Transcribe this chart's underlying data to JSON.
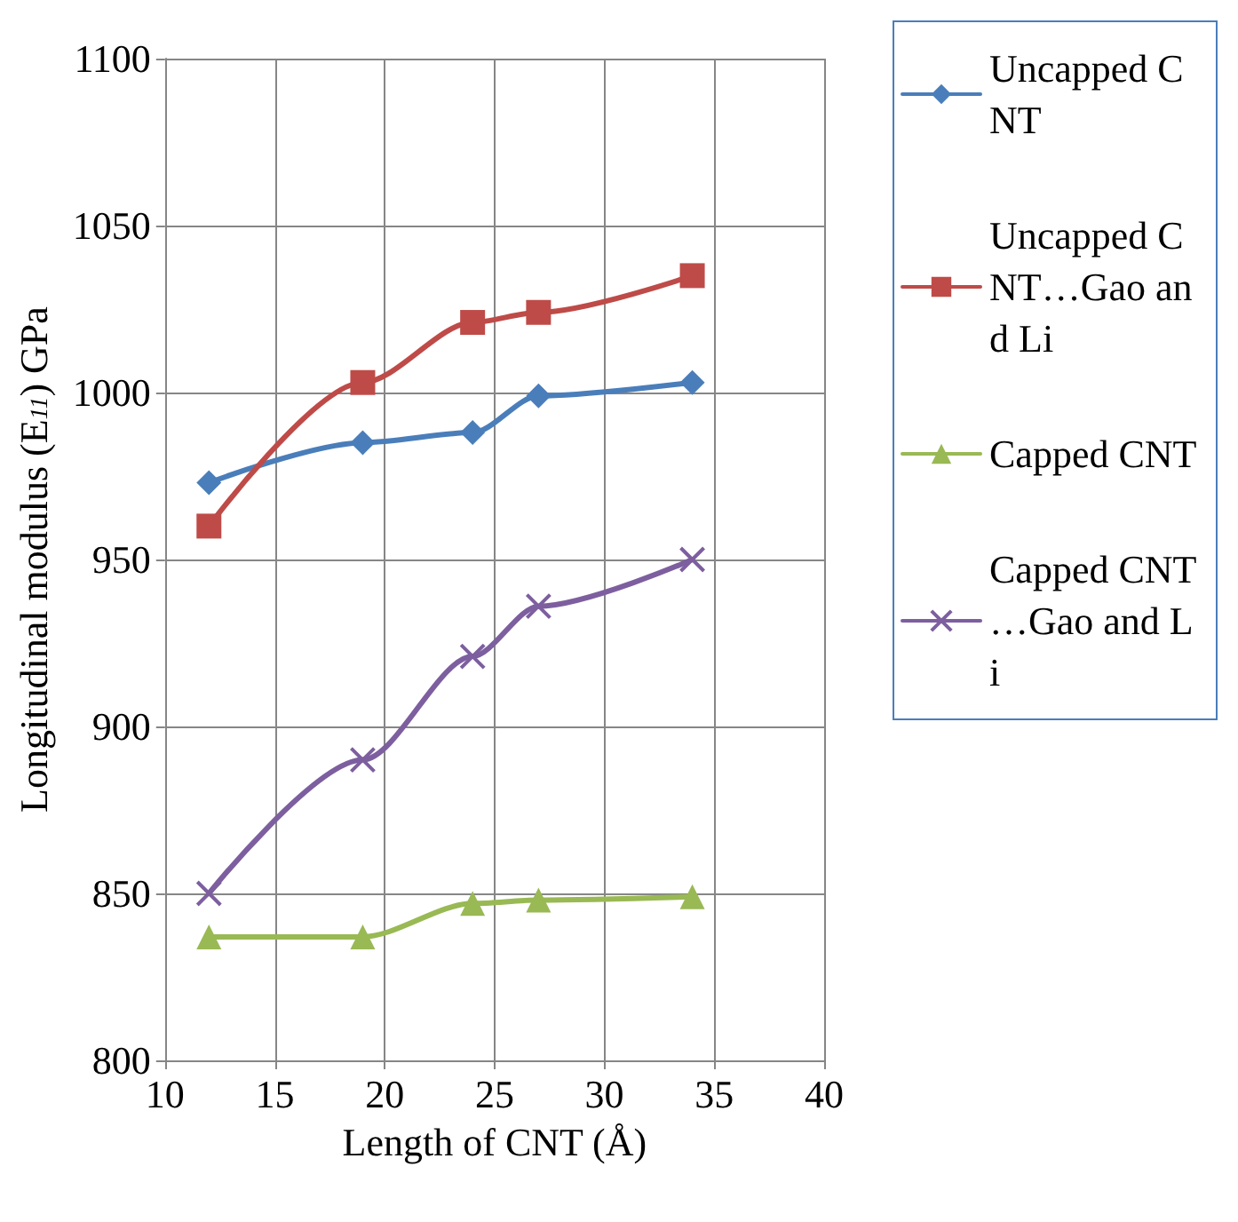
{
  "chart_data": {
    "type": "line",
    "xlabel": "Length of CNT (Å)",
    "ylabel": "Longitudinal modulus (E$_{11}$) GPa",
    "x": [
      12,
      19,
      24,
      27,
      34
    ],
    "series": [
      {
        "name": "Uncapped CNT",
        "color": "#4a7ebb",
        "marker": "diamond",
        "values": [
          973,
          985,
          988,
          999,
          1003
        ]
      },
      {
        "name": "Uncapped CNT…Gao and Li",
        "color": "#be4b48",
        "marker": "square",
        "values": [
          960,
          1003,
          1021,
          1024,
          1035
        ]
      },
      {
        "name": "Capped CNT",
        "color": "#98b954",
        "marker": "triangle",
        "values": [
          837,
          837,
          847,
          848,
          849
        ]
      },
      {
        "name": "Capped CNT…Gao and Li",
        "color": "#7d5fa0",
        "marker": "cross",
        "values": [
          850,
          890,
          921,
          936,
          950
        ]
      }
    ],
    "xlim": [
      10,
      40
    ],
    "xticks": [
      10,
      15,
      20,
      25,
      30,
      35,
      40
    ],
    "ylim": [
      800,
      1100
    ],
    "yticks": [
      800,
      850,
      900,
      950,
      1000,
      1050,
      1100
    ],
    "grid": true,
    "legend": "right",
    "line_style": "solid"
  }
}
